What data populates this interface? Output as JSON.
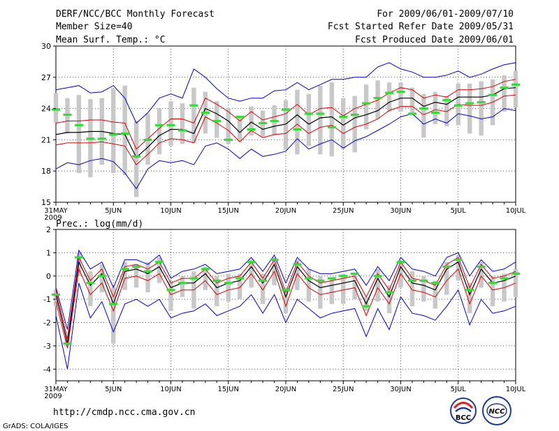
{
  "header": {
    "title": "DERF/NCC/BCC Monthly Forecast",
    "member": "Member Size=40",
    "variable": "Mean Surf. Temp.: °C",
    "period": "For 2009/06/01-2009/07/10",
    "refer": "Fcst Started Refer Date 2009/05/31",
    "produced": "Fcst Produced Date 2009/06/01"
  },
  "footer": {
    "url": "http://cmdp.ncc.cma.gov.cn",
    "grads": "GrADS: COLA/IGES",
    "logo_bcc": "BCC",
    "logo_ncc": "NCC"
  },
  "colors": {
    "mean": "#000000",
    "spread": "#e00000",
    "extreme": "#0000e0",
    "observed": "#33dd33",
    "box": "#c8c8c8",
    "grid": "#555555"
  },
  "chart_data": [
    {
      "type": "line",
      "title": "Mean Surf. Temp.: °C",
      "ylim": [
        15,
        30
      ],
      "yticks": [
        15,
        18,
        21,
        24,
        27,
        30
      ],
      "xlabels": [
        "31MAY",
        "5JUN",
        "10JUN",
        "15JUN",
        "20JUN",
        "25JUN",
        "30JUN",
        "5JUL",
        "10JUL"
      ],
      "xlabel_year": "2009",
      "days": 41,
      "mean": [
        21.5,
        21.7,
        21.7,
        21.8,
        21.8,
        21.6,
        21.5,
        19.3,
        20.3,
        21.4,
        22.0,
        22.0,
        21.6,
        24.0,
        23.5,
        22.8,
        21.7,
        22.7,
        22.0,
        22.3,
        22.5,
        23.4,
        22.5,
        23.1,
        23.2,
        22.4,
        23.1,
        23.4,
        23.8,
        24.6,
        25.0,
        25.0,
        24.2,
        24.6,
        24.4,
        25.1,
        25.1,
        25.1,
        25.3,
        25.9,
        26.0
      ],
      "upper": [
        22.6,
        22.8,
        22.8,
        22.9,
        22.9,
        22.7,
        22.6,
        20.1,
        21.1,
        22.1,
        23.0,
        23.0,
        22.6,
        25.0,
        24.4,
        23.7,
        22.8,
        23.7,
        22.9,
        23.2,
        23.5,
        24.4,
        23.4,
        24.0,
        24.1,
        23.3,
        24.0,
        24.4,
        24.8,
        25.5,
        26.0,
        25.8,
        25.0,
        25.3,
        25.1,
        25.8,
        25.8,
        25.9,
        26.1,
        26.6,
        26.8
      ],
      "lower": [
        20.5,
        20.7,
        20.7,
        20.7,
        20.8,
        20.6,
        20.4,
        18.6,
        19.6,
        20.7,
        21.1,
        21.0,
        20.7,
        23.2,
        22.6,
        21.9,
        20.8,
        21.9,
        21.2,
        21.5,
        21.6,
        22.5,
        21.6,
        22.2,
        22.4,
        21.6,
        22.2,
        22.5,
        23.0,
        23.8,
        24.2,
        24.2,
        23.4,
        23.9,
        23.7,
        24.4,
        24.3,
        24.3,
        24.6,
        25.2,
        25.3
      ],
      "max": [
        25.8,
        26.0,
        26.2,
        25.5,
        25.6,
        26.2,
        25.0,
        22.6,
        23.6,
        25.0,
        25.4,
        25.0,
        27.8,
        27.0,
        25.9,
        25.0,
        24.7,
        25.0,
        25.0,
        25.7,
        25.8,
        26.5,
        25.8,
        26.3,
        26.8,
        26.8,
        27.0,
        27.0,
        28.0,
        28.4,
        27.8,
        27.5,
        27.0,
        27.0,
        27.2,
        27.6,
        27.0,
        27.3,
        27.8,
        28.2,
        28.4
      ],
      "min": [
        18.2,
        18.8,
        18.6,
        19.0,
        19.2,
        18.9,
        17.8,
        16.3,
        18.2,
        19.0,
        18.8,
        19.0,
        18.6,
        20.4,
        20.7,
        20.1,
        19.2,
        20.1,
        19.4,
        19.6,
        19.9,
        21.1,
        20.1,
        20.6,
        21.0,
        20.2,
        20.9,
        21.3,
        21.9,
        22.5,
        23.2,
        23.5,
        22.5,
        23.0,
        22.6,
        23.5,
        23.3,
        23.0,
        23.2,
        24.0,
        23.8
      ],
      "box_top": [
        25.5,
        25.0,
        25.3,
        24.9,
        25.0,
        25.9,
        26.2,
        22.8,
        23.5,
        24.0,
        24.7,
        24.5,
        26.0,
        25.6,
        24.7,
        24.0,
        23.2,
        24.2,
        23.8,
        24.3,
        24.8,
        25.8,
        25.4,
        26.2,
        26.5,
        25.0,
        25.2,
        26.3,
        26.7,
        26.5,
        26.5,
        26.0,
        25.4,
        25.6,
        25.2,
        26.4,
        26.4,
        26.6,
        26.8,
        27.2,
        27.6
      ],
      "box_bottom": [
        22.6,
        21.6,
        17.8,
        17.4,
        18.6,
        17.8,
        17.6,
        15.5,
        18.6,
        19.6,
        20.4,
        20.6,
        20.7,
        21.6,
        21.2,
        20.6,
        20.9,
        21.4,
        21.3,
        21.4,
        20.0,
        19.6,
        20.4,
        19.6,
        19.4,
        20.1,
        19.8,
        22.0,
        23.0,
        23.7,
        23.7,
        23.6,
        21.2,
        22.5,
        22.3,
        22.4,
        21.6,
        21.4,
        22.4,
        23.7,
        24.1
      ],
      "observed": [
        23.9,
        23.4,
        22.4,
        21.1,
        21.1,
        21.5,
        21.6,
        19.4,
        21.0,
        22.4,
        22.4,
        21.9,
        24.3,
        23.6,
        22.8,
        21.0,
        23.2,
        22.0,
        22.6,
        22.8,
        23.9,
        22.0,
        23.5,
        23.5,
        22.2,
        23.2,
        23.4,
        24.5,
        25.0,
        25.5,
        25.6,
        23.5,
        24.0,
        23.6,
        24.8,
        24.3,
        24.5,
        24.6,
        25.3,
        26.0,
        26.3
      ]
    },
    {
      "type": "line",
      "title": "Prec.: log(mm/d)",
      "ylim": [
        -4.5,
        2
      ],
      "yticks": [
        -4,
        -3,
        -2,
        -1,
        0,
        1,
        2
      ],
      "xlabels": [
        "31MAY",
        "5JUN",
        "10JUN",
        "15JUN",
        "20JUN",
        "25JUN",
        "30JUN",
        "5JUL",
        "10JUL"
      ],
      "xlabel_year": "2009",
      "days": 41,
      "mean": [
        -0.8,
        -2.9,
        0.6,
        -0.4,
        0.1,
        -1.2,
        0.2,
        0.3,
        0.1,
        0.4,
        -0.5,
        -0.3,
        -0.3,
        0.1,
        -0.5,
        -0.3,
        -0.2,
        0.4,
        -0.3,
        0.5,
        -0.9,
        0.4,
        -0.2,
        -0.5,
        -0.4,
        -0.3,
        -0.2,
        -1.2,
        -0.1,
        -0.9,
        0.4,
        -0.3,
        -0.4,
        -0.6,
        0.3,
        0.6,
        -0.8,
        0.3,
        -0.3,
        -0.2,
        0.0
      ],
      "upper": [
        -0.6,
        -2.7,
        0.8,
        -0.2,
        0.3,
        -0.9,
        0.4,
        0.5,
        0.3,
        0.6,
        -0.3,
        -0.1,
        -0.1,
        0.3,
        -0.3,
        -0.1,
        0.0,
        0.6,
        -0.1,
        0.7,
        -0.7,
        0.6,
        0.0,
        -0.3,
        -0.2,
        -0.1,
        0.0,
        -0.9,
        0.1,
        -0.6,
        0.6,
        -0.1,
        -0.2,
        -0.4,
        0.5,
        0.8,
        -0.5,
        0.5,
        -0.1,
        0.0,
        0.2
      ],
      "lower": [
        -1.1,
        -3.1,
        0.3,
        -0.8,
        -0.3,
        -1.5,
        -0.1,
        0.0,
        -0.2,
        0.1,
        -0.8,
        -0.6,
        -0.6,
        -0.2,
        -0.8,
        -0.6,
        -0.5,
        0.1,
        -0.6,
        0.2,
        -1.3,
        0.1,
        -0.5,
        -0.8,
        -0.7,
        -0.6,
        -0.5,
        -1.7,
        -0.5,
        -1.2,
        0.1,
        -0.6,
        -0.7,
        -0.9,
        -0.2,
        0.3,
        -1.2,
        0.0,
        -0.6,
        -0.5,
        -0.3
      ],
      "max": [
        -0.5,
        -2.3,
        1.1,
        0.3,
        0.6,
        -0.5,
        0.7,
        0.7,
        0.5,
        0.9,
        -0.1,
        0.2,
        0.3,
        0.5,
        0.1,
        0.2,
        0.3,
        0.8,
        0.2,
        0.9,
        -0.3,
        0.8,
        0.3,
        0.1,
        0.1,
        0.2,
        0.3,
        -0.4,
        0.4,
        -0.2,
        0.8,
        0.3,
        0.2,
        0.0,
        0.8,
        1.0,
        0.0,
        0.7,
        0.2,
        0.3,
        0.6
      ],
      "min": [
        -1.7,
        -4.0,
        -0.3,
        -1.8,
        -1.1,
        -2.4,
        -1.2,
        -1.0,
        -1.3,
        -1.0,
        -1.8,
        -1.6,
        -1.5,
        -1.2,
        -1.7,
        -1.5,
        -1.3,
        -0.8,
        -1.6,
        -0.8,
        -2.0,
        -1.0,
        -1.4,
        -1.8,
        -1.6,
        -1.5,
        -1.4,
        -2.6,
        -1.4,
        -2.3,
        -0.9,
        -1.6,
        -1.7,
        -1.9,
        -1.3,
        -0.6,
        -2.1,
        -1.0,
        -1.6,
        -1.5,
        -1.3
      ],
      "box_top": [
        -0.6,
        -2.6,
        1.0,
        0.2,
        0.5,
        -0.5,
        0.6,
        0.5,
        0.6,
        0.8,
        -0.2,
        0.0,
        0.2,
        0.4,
        0.0,
        0.1,
        0.1,
        0.7,
        0.1,
        0.8,
        -0.5,
        0.7,
        0.3,
        0.0,
        -0.1,
        0.1,
        0.1,
        -0.9,
        0.3,
        -0.4,
        0.6,
        0.2,
        0.0,
        -0.2,
        0.6,
        0.9,
        -0.3,
        0.6,
        0.0,
        0.1,
        0.3
      ],
      "box_bottom": [
        -1.3,
        -3.0,
        0.0,
        -1.3,
        -0.7,
        -2.9,
        -0.6,
        -0.5,
        -0.7,
        -0.3,
        -1.5,
        -0.9,
        -1.4,
        -0.6,
        -1.3,
        -1.1,
        -1.0,
        -0.5,
        -1.2,
        -0.4,
        -1.6,
        -0.6,
        -1.1,
        -1.4,
        -1.2,
        -1.2,
        -1.0,
        -1.5,
        -1.1,
        -1.6,
        -0.5,
        -1.3,
        -1.1,
        -1.4,
        -0.8,
        -0.2,
        -1.6,
        -0.5,
        -1.3,
        -1.1,
        -0.9
      ],
      "observed": [
        -0.8,
        -2.9,
        0.8,
        -0.3,
        0.0,
        -1.2,
        0.3,
        0.4,
        0.2,
        0.6,
        -0.6,
        -0.3,
        -0.1,
        0.3,
        -0.2,
        -0.3,
        -0.1,
        0.6,
        -0.2,
        0.7,
        -0.6,
        0.5,
        -0.1,
        -0.2,
        -0.1,
        0.0,
        0.1,
        -1.3,
        0.0,
        -0.7,
        0.6,
        -0.2,
        -0.2,
        -0.3,
        0.4,
        0.7,
        -0.6,
        0.4,
        -0.3,
        -0.1,
        0.1
      ]
    }
  ]
}
